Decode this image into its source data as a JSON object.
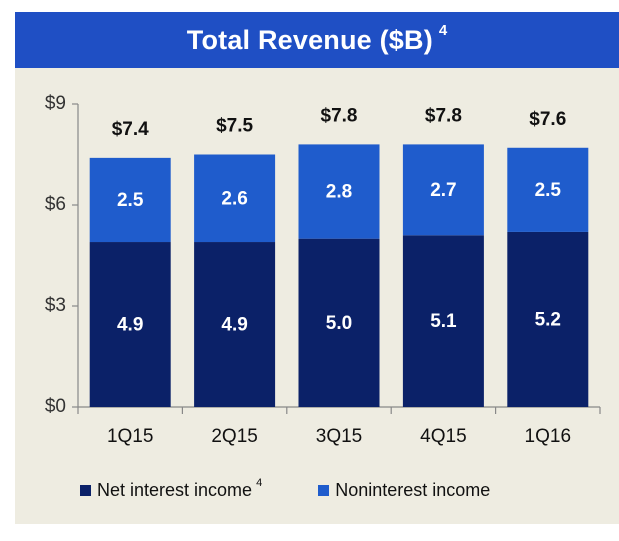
{
  "header": {
    "title": "Total Revenue ($B)",
    "footnote": "4"
  },
  "colors": {
    "dark": "#0b2168",
    "light": "#1f5ccc",
    "header_bg": "#1f4fc4",
    "panel_bg": "#eeece1"
  },
  "legend": [
    {
      "label": "Net interest income",
      "footnote": "4"
    },
    {
      "label": "Noninterest income",
      "footnote": ""
    }
  ],
  "chart_data": {
    "type": "bar",
    "stacked": true,
    "title": "Total Revenue ($B)",
    "categories": [
      "1Q15",
      "2Q15",
      "3Q15",
      "4Q15",
      "1Q16"
    ],
    "series": [
      {
        "name": "Net interest income",
        "values": [
          4.9,
          4.9,
          5.0,
          5.1,
          5.2
        ],
        "labels": [
          "4.9",
          "4.9",
          "5.0",
          "5.1",
          "5.2"
        ]
      },
      {
        "name": "Noninterest income",
        "values": [
          2.5,
          2.6,
          2.8,
          2.7,
          2.5
        ],
        "labels": [
          "2.5",
          "2.6",
          "2.8",
          "2.7",
          "2.5"
        ]
      }
    ],
    "totals": [
      7.4,
      7.5,
      7.8,
      7.8,
      7.6
    ],
    "total_labels": [
      "$7.4",
      "$7.5",
      "$7.8",
      "$7.8",
      "$7.6"
    ],
    "ylim": [
      0,
      9
    ],
    "yticks": [
      0,
      3,
      6,
      9
    ],
    "ytick_labels": [
      "$0",
      "$3",
      "$6",
      "$9"
    ],
    "grid": false,
    "legend_position": "bottom"
  }
}
